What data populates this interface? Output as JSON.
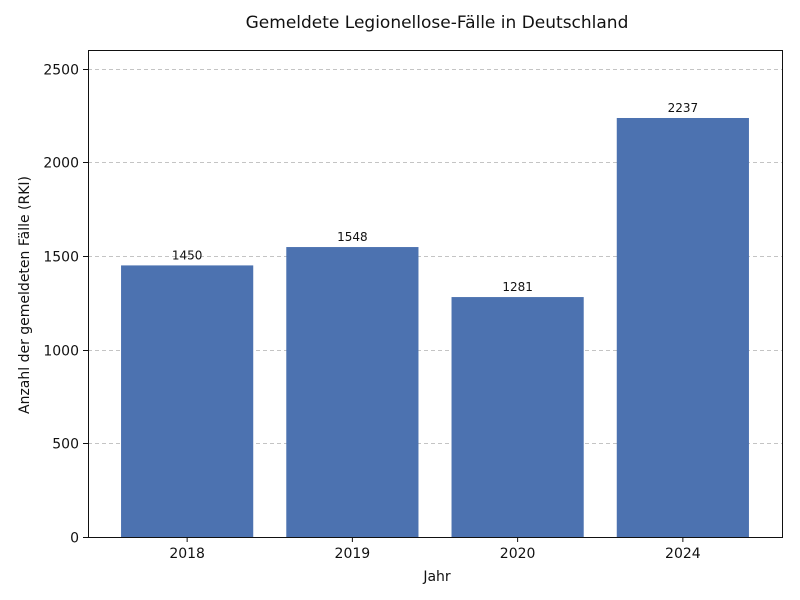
{
  "chart_data": {
    "type": "bar",
    "title": "Gemeldete Legionellose-Fälle in Deutschland",
    "xlabel": "Jahr",
    "ylabel": "Anzahl der gemeldeten Fälle (RKI)",
    "categories": [
      "2018",
      "2019",
      "2020",
      "2024"
    ],
    "values": [
      1450,
      1548,
      1281,
      2237
    ],
    "data_labels": [
      "1450",
      "1548",
      "1281",
      "2237"
    ],
    "ylim": [
      0,
      2600
    ],
    "yticks": [
      0,
      500,
      1000,
      1500,
      2000,
      2500
    ],
    "ytick_labels": [
      "0",
      "500",
      "1000",
      "1500",
      "2000",
      "2500"
    ],
    "grid": "y-dashed",
    "legend": "none",
    "bar_color": "#4c72b0"
  }
}
